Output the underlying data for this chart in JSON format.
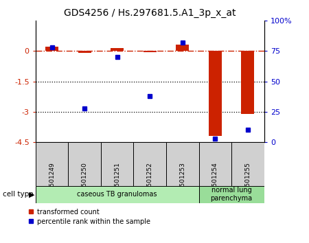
{
  "title": "GDS4256 / Hs.297681.5.A1_3p_x_at",
  "samples": [
    "GSM501249",
    "GSM501250",
    "GSM501251",
    "GSM501252",
    "GSM501253",
    "GSM501254",
    "GSM501255"
  ],
  "red_values": [
    0.2,
    -0.1,
    0.15,
    -0.05,
    0.3,
    -4.2,
    -3.1
  ],
  "blue_values_pct": [
    78,
    28,
    70,
    38,
    82,
    3,
    10
  ],
  "ylim_left": [
    -4.5,
    1.5
  ],
  "ylim_right": [
    0,
    100
  ],
  "yticks_left": [
    0,
    -1.5,
    -3,
    -4.5
  ],
  "yticks_right": [
    0,
    25,
    50,
    75,
    100
  ],
  "hline_y": 0,
  "dotted_lines": [
    -1.5,
    -3
  ],
  "cell_types": [
    {
      "label": "caseous TB granulomas",
      "start": 0,
      "end": 5,
      "color": "#b3ecb3"
    },
    {
      "label": "normal lung\nparenchyma",
      "start": 5,
      "end": 7,
      "color": "#99dd99"
    }
  ],
  "red_color": "#cc2200",
  "blue_color": "#0000cc",
  "bar_width": 0.4,
  "blue_marker_size": 5,
  "legend_red": "transformed count",
  "legend_blue": "percentile rank within the sample",
  "cell_type_label": "cell type",
  "sample_box_color": "#d0d0d0",
  "background_color": "#ffffff"
}
